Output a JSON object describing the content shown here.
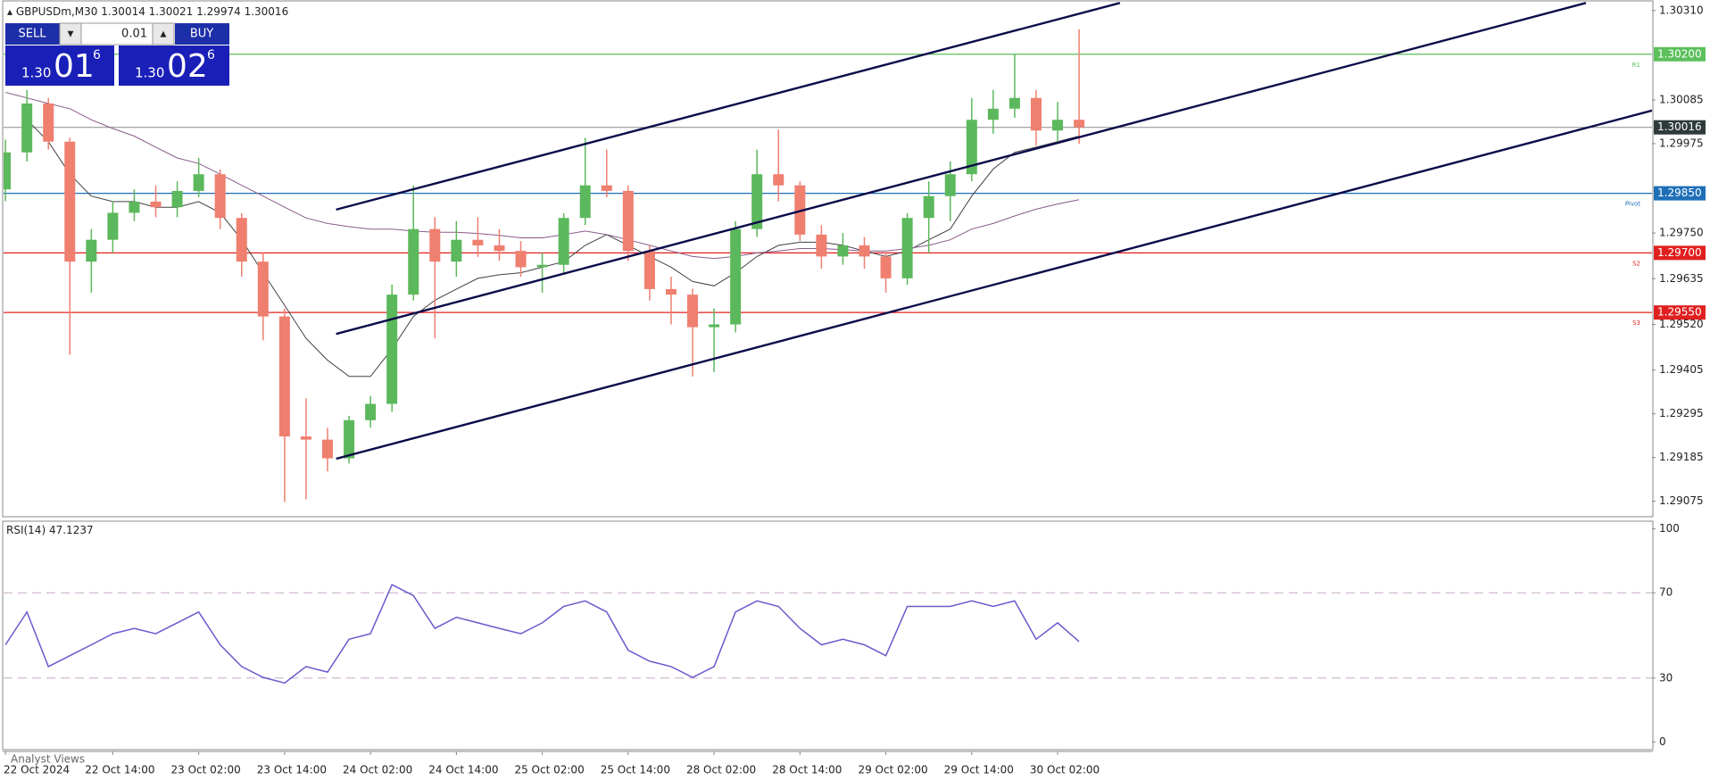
{
  "chart_data": [
    {
      "type": "candlestick",
      "title": "GBPUSDm,M30",
      "header_values": [
        1.30014,
        1.30021,
        1.29974,
        1.30016
      ],
      "categories": [
        "22 Oct 2024",
        null,
        null,
        null,
        null,
        "22 Oct 14:00",
        null,
        null,
        null,
        "23 Oct 02:00",
        null,
        null,
        null,
        "23 Oct 14:00",
        null,
        null,
        null,
        "24 Oct 02:00",
        null,
        null,
        null,
        "24 Oct 14:00",
        null,
        null,
        null,
        "25 Oct 02:00",
        null,
        null,
        null,
        "25 Oct 14:00",
        null,
        null,
        null,
        "28 Oct 02:00",
        null,
        null,
        null,
        "28 Oct 14:00",
        null,
        null,
        null,
        "29 Oct 02:00",
        null,
        null,
        null,
        "29 Oct 14:00",
        null,
        null,
        null,
        "30 Oct 02:00",
        null
      ],
      "open": [
        1.2986,
        1.29953,
        1.30076,
        1.2998,
        1.29678,
        1.29733,
        1.29801,
        1.29829,
        1.29815,
        1.29856,
        1.29898,
        1.29788,
        1.29678,
        1.2954,
        1.29238,
        1.2923,
        1.29183,
        1.29279,
        1.2932,
        1.29595,
        1.2976,
        1.29678,
        1.29733,
        1.29719,
        1.29705,
        1.29664,
        1.2967,
        1.29788,
        1.2987,
        1.29856,
        1.29705,
        1.29609,
        1.29595,
        1.29513,
        1.2952,
        1.2976,
        1.29898,
        1.2987,
        1.29746,
        1.29691,
        1.29719,
        1.29691,
        1.29636,
        1.29788,
        1.29843,
        1.29898,
        1.30035,
        1.30063,
        1.3009,
        1.30008,
        1.30035
      ],
      "high": [
        1.29985,
        1.3011,
        1.3009,
        1.2999,
        1.2976,
        1.2983,
        1.2986,
        1.2987,
        1.2988,
        1.29939,
        1.2991,
        1.298,
        1.297,
        1.2956,
        1.29334,
        1.2926,
        1.2929,
        1.2934,
        1.2962,
        1.2987,
        1.2979,
        1.2978,
        1.2979,
        1.2976,
        1.2973,
        1.297,
        1.298,
        1.2999,
        1.2996,
        1.2987,
        1.2972,
        1.2964,
        1.2961,
        1.2956,
        1.2978,
        1.2996,
        1.3001,
        1.2988,
        1.2977,
        1.2975,
        1.2974,
        1.297,
        1.298,
        1.2988,
        1.2993,
        1.3009,
        1.3011,
        1.302,
        1.3011,
        1.3008,
        1.30263
      ],
      "low": [
        1.2983,
        1.2993,
        1.2996,
        1.29444,
        1.296,
        1.297,
        1.2978,
        1.2979,
        1.2979,
        1.2984,
        1.2976,
        1.2964,
        1.2948,
        1.29073,
        1.2908,
        1.2915,
        1.2917,
        1.2926,
        1.293,
        1.2958,
        1.29485,
        1.2964,
        1.2969,
        1.2968,
        1.2964,
        1.296,
        1.2965,
        1.2977,
        1.2984,
        1.2968,
        1.2958,
        1.2952,
        1.29389,
        1.294,
        1.295,
        1.2974,
        1.2983,
        1.2973,
        1.2966,
        1.2967,
        1.2966,
        1.296,
        1.2962,
        1.297,
        1.2978,
        1.2988,
        1.3,
        1.3004,
        1.2997,
        1.2998,
        1.29974
      ],
      "close": [
        1.29953,
        1.30076,
        1.2998,
        1.29678,
        1.29733,
        1.29801,
        1.29829,
        1.29815,
        1.29856,
        1.29898,
        1.29788,
        1.29678,
        1.2954,
        1.29238,
        1.2923,
        1.29183,
        1.29279,
        1.2932,
        1.29595,
        1.2976,
        1.29678,
        1.29733,
        1.29719,
        1.29705,
        1.29664,
        1.2967,
        1.29788,
        1.2987,
        1.29856,
        1.29705,
        1.29609,
        1.29595,
        1.29513,
        1.2952,
        1.2976,
        1.29898,
        1.2987,
        1.29746,
        1.29691,
        1.29719,
        1.29691,
        1.29636,
        1.29788,
        1.29843,
        1.29898,
        1.30035,
        1.30063,
        1.3009,
        1.30008,
        1.30035,
        1.30016
      ],
      "up_color": "#5cb85c",
      "down_color": "#ef7f6f",
      "ylim": [
        1.29036,
        1.30332
      ],
      "yticks": [
        {
          "value": 1.3031,
          "label": "1.30310"
        },
        {
          "value": 1.30085,
          "label": "1.30085"
        },
        {
          "value": 1.29975,
          "label": "1.29975"
        },
        {
          "value": 1.2975,
          "label": "1.29750"
        },
        {
          "value": 1.29635,
          "label": "1.29635"
        },
        {
          "value": 1.2952,
          "label": "1.29520"
        },
        {
          "value": 1.29405,
          "label": "1.29405"
        },
        {
          "value": 1.29295,
          "label": "1.29295"
        },
        {
          "value": 1.29185,
          "label": "1.29185"
        },
        {
          "value": 1.29075,
          "label": "1.29075"
        }
      ],
      "moving_averages": [
        {
          "color": "#404040",
          "values": [
            null,
            1.30035,
            1.2998,
            1.29898,
            1.29843,
            1.29829,
            1.29829,
            1.29815,
            1.29815,
            1.29829,
            1.29801,
            1.29733,
            1.2965,
            1.29568,
            1.29485,
            1.2943,
            1.29389,
            1.29389,
            1.29458,
            1.2954,
            1.29581,
            1.29609,
            1.29636,
            1.29645,
            1.2965,
            1.29664,
            1.29678,
            1.29719,
            1.29746,
            1.29719,
            1.29691,
            1.29664,
            1.29628,
            1.29617,
            1.2965,
            1.29691,
            1.29719,
            1.29727,
            1.29727,
            1.29719,
            1.29705,
            1.29691,
            1.29705,
            1.29733,
            1.2976,
            1.29843,
            1.29911,
            1.29953,
            1.29966,
            1.2998,
            1.29994
          ]
        },
        {
          "color": "#8a5a8a",
          "values": [
            1.30104,
            1.3009,
            1.30076,
            1.30063,
            1.30035,
            1.30013,
            1.29994,
            1.29966,
            1.29939,
            1.29925,
            1.29898,
            1.2987,
            1.29843,
            1.29815,
            1.29788,
            1.29774,
            1.29766,
            1.2976,
            1.2976,
            1.29755,
            1.29752,
            1.29752,
            1.29749,
            1.29744,
            1.29738,
            1.29738,
            1.29746,
            1.29755,
            1.29746,
            1.29733,
            1.29719,
            1.29705,
            1.29691,
            1.29686,
            1.29691,
            1.297,
            1.29705,
            1.29711,
            1.29711,
            1.29708,
            1.29705,
            1.29705,
            1.29711,
            1.29719,
            1.29733,
            1.2976,
            1.29774,
            1.29793,
            1.2981,
            1.29823,
            1.29834
          ]
        }
      ],
      "levels": [
        {
          "name": "R1",
          "value": 1.302,
          "label": "1.30200",
          "color": "#5cc05c"
        },
        {
          "name": "Pivot",
          "value": 1.2985,
          "label": "1.29850",
          "color": "#1e6fb8"
        },
        {
          "name": "S2",
          "value": 1.297,
          "label": "1.29700",
          "color": "#e02020"
        },
        {
          "name": "S3",
          "value": 1.2955,
          "label": "1.29550",
          "color": "#e02020"
        }
      ],
      "current_price": {
        "value": 1.30016,
        "label": "1.30016",
        "color": "#2f3b3b"
      },
      "trendline_color": "#0b0b4a",
      "trendlines": [
        {
          "x": [
            15.4,
            51.9
          ],
          "y": [
            1.29809,
            1.30329
          ]
        },
        {
          "x": [
            15.4,
            73.6
          ],
          "y": [
            1.29496,
            1.30329
          ]
        },
        {
          "x": [
            15.4,
            76.8
          ],
          "y": [
            1.29182,
            1.3006
          ]
        }
      ]
    },
    {
      "type": "line",
      "title": "RSI(14)",
      "last_value": 47.1237,
      "color": "#6a5acd",
      "values": [
        45.6,
        61.0,
        35.4,
        40.5,
        45.6,
        50.8,
        53.3,
        50.8,
        55.9,
        61.0,
        45.6,
        35.4,
        30.3,
        27.7,
        35.4,
        32.8,
        48.2,
        50.8,
        73.8,
        68.7,
        53.3,
        58.5,
        55.9,
        53.3,
        50.8,
        55.9,
        63.6,
        66.2,
        61.0,
        43.1,
        37.9,
        35.4,
        30.3,
        35.4,
        61.0,
        66.2,
        63.6,
        53.3,
        45.6,
        48.2,
        45.6,
        40.5,
        63.6,
        63.6,
        63.6,
        66.2,
        63.6,
        66.2,
        48.2,
        55.9,
        47.1
      ],
      "ylim": [
        -3.6,
        103.6
      ],
      "yticks": [
        0,
        30,
        70,
        100
      ],
      "dashed_levels": [
        30,
        70
      ]
    }
  ],
  "trade_panel": {
    "sell_label": "SELL",
    "buy_label": "BUY",
    "lot": 0.01,
    "sell_price": [
      "1.30",
      "01",
      "6"
    ],
    "buy_price": [
      "1.30",
      "02",
      "6"
    ]
  },
  "footer": "Analyst Views"
}
